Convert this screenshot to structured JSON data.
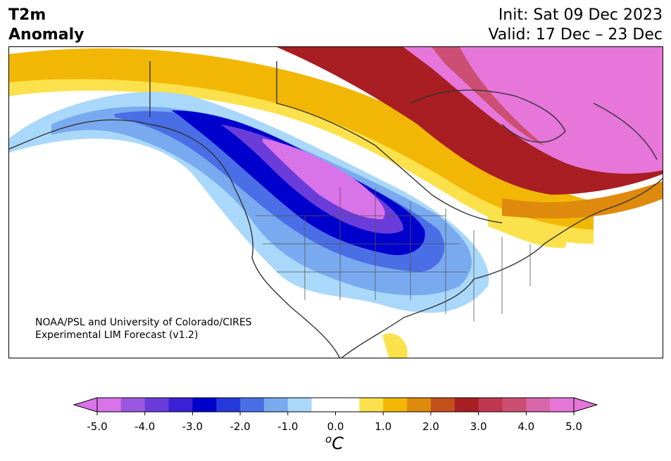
{
  "title": {
    "line1": "T2m",
    "line2": "Anomaly"
  },
  "init": "Init: Sat 09 Dec 2023",
  "valid": "Valid: 17 Dec – 23 Dec",
  "credit": {
    "line1": "NOAA/PSL and University of Colorado/CIRES",
    "line2": "Experimental LIM Forecast (v1.2)"
  },
  "colorbar": {
    "ticks": [
      "-5.0",
      "-4.0",
      "-3.0",
      "-2.0",
      "-1.0",
      "0.0",
      "1.0",
      "2.0",
      "3.0",
      "4.0",
      "5.0"
    ],
    "colors": [
      "#d873e8",
      "#9b57e0",
      "#6a3ddb",
      "#3b20d4",
      "#0000cc",
      "#2639db",
      "#4a6ee6",
      "#79aaf0",
      "#a9d8fa",
      "#ffffff",
      "#ffffff",
      "#fbe14c",
      "#f2b705",
      "#de8a0c",
      "#c4501a",
      "#a81e22",
      "#c0374f",
      "#cc4f73",
      "#d966ab",
      "#e676d9"
    ],
    "under_color": "#d873e8",
    "over_color": "#e676d9",
    "unit_base": "C",
    "unit_sup": "o"
  }
}
